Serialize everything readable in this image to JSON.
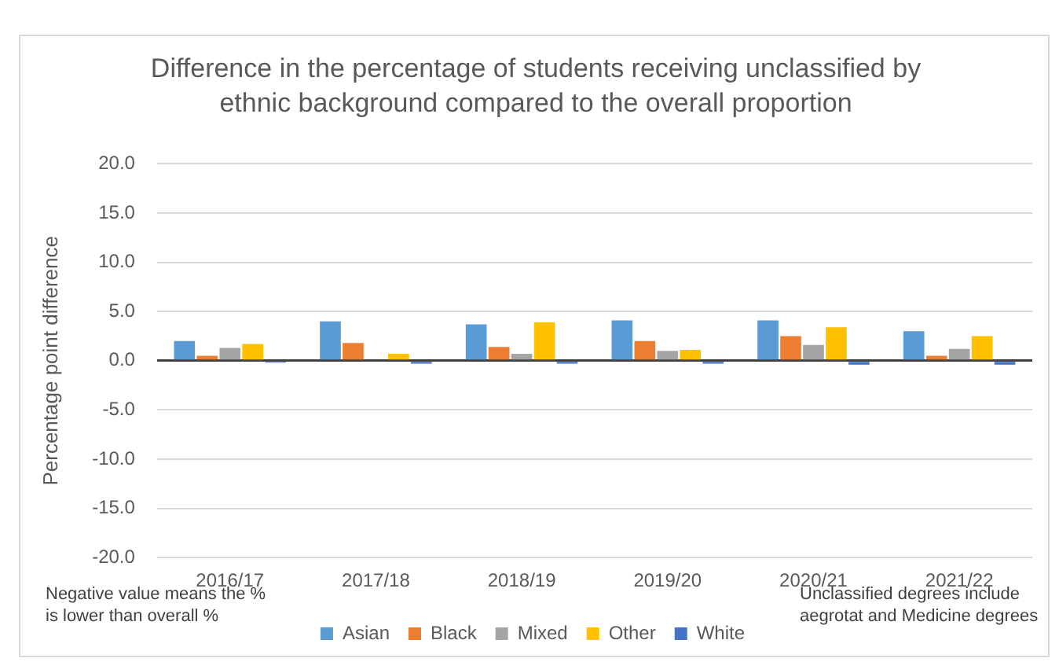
{
  "chart_data": {
    "type": "bar",
    "title": "Difference in the percentage of students receiving unclassified by ethnic background compared to the overall proportion",
    "ylabel": "Percentage point difference",
    "categories": [
      "2016/17",
      "2017/18",
      "2018/19",
      "2019/20",
      "2020/21",
      "2021/22"
    ],
    "series": [
      {
        "name": "Asian",
        "color": "#5b9bd5",
        "values": [
          2.0,
          4.0,
          3.7,
          4.1,
          4.1,
          3.0
        ]
      },
      {
        "name": "Black",
        "color": "#ed7d31",
        "values": [
          0.5,
          1.8,
          1.4,
          2.0,
          2.5,
          0.5
        ]
      },
      {
        "name": "Mixed",
        "color": "#a5a5a5",
        "values": [
          1.3,
          0,
          0.7,
          1.0,
          1.6,
          1.2
        ]
      },
      {
        "name": "Other",
        "color": "#ffc000",
        "values": [
          1.7,
          0.7,
          3.9,
          1.1,
          3.4,
          2.5
        ]
      },
      {
        "name": "White",
        "color": "#4472c4",
        "values": [
          -0.2,
          -0.3,
          -0.3,
          -0.3,
          -0.4,
          -0.4
        ]
      }
    ],
    "ylim": [
      -20,
      20
    ],
    "yticks": [
      {
        "value": -20,
        "label": "-20.0"
      },
      {
        "value": -15,
        "label": "-15.0"
      },
      {
        "value": -10,
        "label": "-10.0"
      },
      {
        "value": -5,
        "label": "-5.0"
      },
      {
        "value": 0,
        "label": "0.0"
      },
      {
        "value": 5,
        "label": "5.0"
      },
      {
        "value": 10,
        "label": "10.0"
      },
      {
        "value": 15,
        "label": "15.0"
      },
      {
        "value": 20,
        "label": "20.0"
      }
    ],
    "grid": "y",
    "legend": "bottom",
    "annotations": [
      "Negative value means the % is lower than overall %",
      "Unclassified degrees include aegrotat and Medicine degrees"
    ]
  }
}
